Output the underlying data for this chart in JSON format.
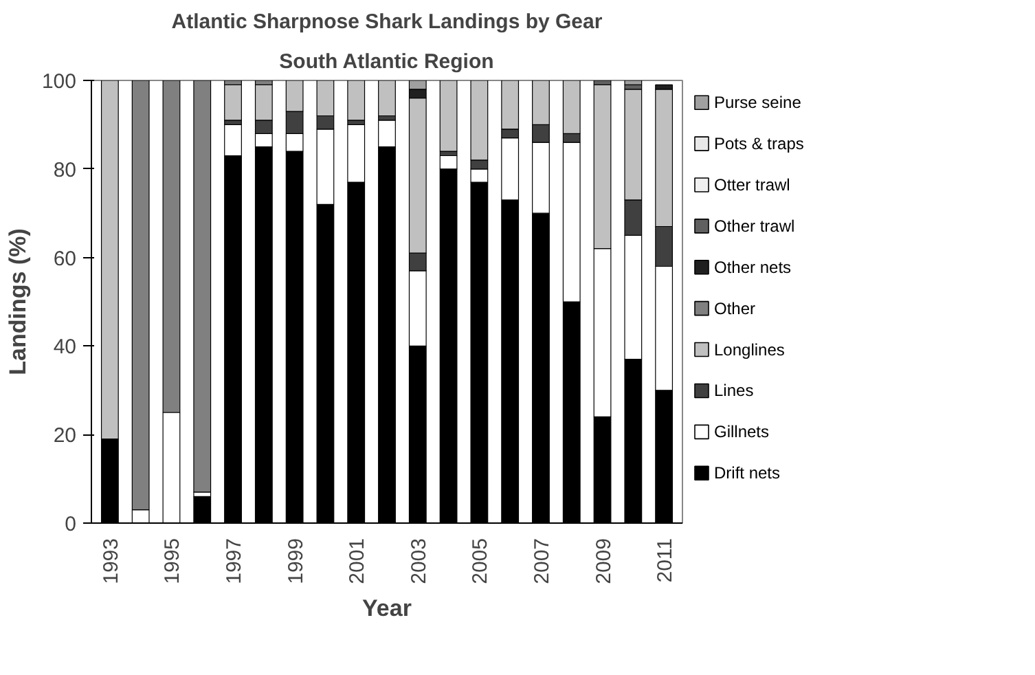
{
  "chart_data": {
    "type": "bar",
    "stacked": true,
    "title": "Atlantic Sharpnose Shark Landings by Gear",
    "subtitle": "South Atlantic Region",
    "xlabel": "Year",
    "ylabel": "Landings (%)",
    "categories": [
      "1993",
      null,
      "1995",
      null,
      "1997",
      null,
      "1999",
      null,
      "2001",
      null,
      "2003",
      null,
      "2005",
      null,
      "2007",
      null,
      "2009",
      null,
      "2011"
    ],
    "ylim": [
      0,
      100
    ],
    "yticks": [
      0,
      20,
      40,
      60,
      80,
      100
    ],
    "grid": false,
    "legend": "right",
    "series": [
      {
        "name": "Drift nets",
        "color": "#000000",
        "values": [
          19,
          0,
          0,
          6,
          83,
          85,
          84,
          72,
          77,
          85,
          40,
          80,
          77,
          73,
          70,
          50,
          24,
          37,
          30
        ]
      },
      {
        "name": "Gillnets",
        "color": "#ffffff",
        "values": [
          0,
          3,
          25,
          1,
          7,
          3,
          4,
          17,
          13,
          6,
          17,
          3,
          3,
          14,
          16,
          36,
          38,
          28,
          28
        ]
      },
      {
        "name": "Lines",
        "color": "#404040",
        "values": [
          0,
          0,
          0,
          0,
          1,
          3,
          5,
          3,
          1,
          1,
          4,
          1,
          2,
          2,
          4,
          2,
          0,
          8,
          9
        ]
      },
      {
        "name": "Longlines",
        "color": "#c0c0c0",
        "values": [
          81,
          0,
          0,
          0,
          8,
          8,
          7,
          8,
          9,
          8,
          35,
          16,
          18,
          11,
          10,
          12,
          37,
          25,
          31
        ]
      },
      {
        "name": "Other",
        "color": "#808080",
        "values": [
          0,
          97,
          75,
          93,
          1,
          1,
          0,
          0,
          0,
          0,
          0,
          0,
          0,
          0,
          0,
          0,
          0,
          0,
          0
        ]
      },
      {
        "name": "Other nets",
        "color": "#202020",
        "values": [
          0,
          0,
          0,
          0,
          0,
          0,
          0,
          0,
          0,
          0,
          2,
          0,
          0,
          0,
          0,
          0,
          0,
          0,
          1
        ]
      },
      {
        "name": "Other trawl",
        "color": "#606060",
        "values": [
          0,
          0,
          0,
          0,
          0,
          0,
          0,
          0,
          0,
          0,
          0,
          0,
          0,
          0,
          0,
          0,
          1,
          1,
          0
        ]
      },
      {
        "name": "Otter trawl",
        "color": "#f0f0f0",
        "values": [
          0,
          0,
          0,
          0,
          0,
          0,
          0,
          0,
          0,
          0,
          0,
          0,
          0,
          0,
          0,
          0,
          0,
          0,
          0
        ]
      },
      {
        "name": "Pots & traps",
        "color": "#e8e8e8",
        "values": [
          0,
          0,
          0,
          0,
          0,
          0,
          0,
          0,
          0,
          0,
          0,
          0,
          0,
          0,
          0,
          0,
          0,
          0,
          0
        ]
      },
      {
        "name": "Purse seine",
        "color": "#a0a0a0",
        "values": [
          0,
          0,
          0,
          0,
          0,
          0,
          0,
          0,
          0,
          0,
          2,
          0,
          0,
          0,
          0,
          0,
          0,
          1,
          0
        ]
      }
    ]
  }
}
